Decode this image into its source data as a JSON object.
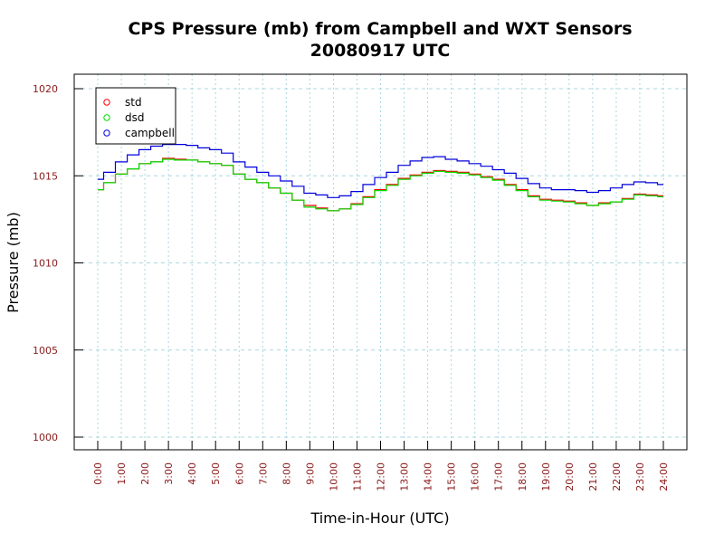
{
  "chart_data": {
    "type": "line",
    "title": "CPS Pressure (mb) from Campbell and WXT Sensors",
    "subtitle": "20080917  UTC",
    "xlabel": "Time-in-Hour (UTC)",
    "ylabel": "Pressure (mb)",
    "xlim": [
      0,
      24
    ],
    "ylim": [
      1000,
      1020
    ],
    "x_ticks": [
      0,
      1,
      2,
      3,
      4,
      5,
      6,
      7,
      8,
      9,
      10,
      11,
      12,
      13,
      14,
      15,
      16,
      17,
      18,
      19,
      20,
      21,
      22,
      23,
      24
    ],
    "x_tick_labels": [
      "0:00",
      "1:00",
      "2:00",
      "3:00",
      "4:00",
      "5:00",
      "6:00",
      "7:00",
      "8:00",
      "9:00",
      "10:00",
      "11:00",
      "12:00",
      "13:00",
      "14:00",
      "15:00",
      "16:00",
      "17:00",
      "18:00",
      "19:00",
      "20:00",
      "21:00",
      "22:00",
      "23:00",
      "24:00"
    ],
    "y_ticks": [
      1000,
      1005,
      1010,
      1015,
      1020
    ],
    "y_tick_labels": [
      "1000",
      "1005",
      "1010",
      "1015",
      "1020"
    ],
    "grid": true,
    "legend_position": "top-left",
    "x": [
      0,
      0.5,
      1,
      1.5,
      2,
      2.5,
      3,
      3.5,
      4,
      4.5,
      5,
      5.5,
      6,
      6.5,
      7,
      7.5,
      8,
      8.5,
      9,
      9.5,
      10,
      10.5,
      11,
      11.5,
      12,
      12.5,
      13,
      13.5,
      14,
      14.5,
      15,
      15.5,
      16,
      16.5,
      17,
      17.5,
      18,
      18.5,
      19,
      19.5,
      20,
      20.5,
      21,
      21.5,
      22,
      22.5,
      23,
      23.5,
      24
    ],
    "series": [
      {
        "name": "std",
        "color": "#ff0000",
        "values": [
          1014.2,
          1014.6,
          1015.1,
          1015.4,
          1015.7,
          1015.8,
          1016.0,
          1015.95,
          1015.9,
          1015.8,
          1015.7,
          1015.6,
          1015.1,
          1014.8,
          1014.6,
          1014.3,
          1014.0,
          1013.6,
          1013.3,
          1013.15,
          1013.0,
          1013.1,
          1013.4,
          1013.8,
          1014.2,
          1014.5,
          1014.85,
          1015.05,
          1015.2,
          1015.3,
          1015.25,
          1015.2,
          1015.1,
          1014.95,
          1014.8,
          1014.5,
          1014.2,
          1013.85,
          1013.65,
          1013.6,
          1013.55,
          1013.45,
          1013.3,
          1013.45,
          1013.5,
          1013.7,
          1013.95,
          1013.9,
          1013.85
        ]
      },
      {
        "name": "dsd",
        "color": "#00dd00",
        "values": [
          1014.2,
          1014.6,
          1015.1,
          1015.4,
          1015.7,
          1015.8,
          1015.95,
          1015.9,
          1015.9,
          1015.8,
          1015.7,
          1015.6,
          1015.1,
          1014.8,
          1014.6,
          1014.3,
          1014.0,
          1013.6,
          1013.2,
          1013.1,
          1013.0,
          1013.1,
          1013.35,
          1013.75,
          1014.15,
          1014.45,
          1014.8,
          1015.0,
          1015.15,
          1015.25,
          1015.2,
          1015.15,
          1015.05,
          1014.9,
          1014.75,
          1014.45,
          1014.15,
          1013.8,
          1013.6,
          1013.55,
          1013.5,
          1013.4,
          1013.3,
          1013.4,
          1013.5,
          1013.65,
          1013.9,
          1013.85,
          1013.8
        ]
      },
      {
        "name": "campbell",
        "color": "#0000dd",
        "values": [
          1014.8,
          1015.2,
          1015.8,
          1016.2,
          1016.5,
          1016.7,
          1016.8,
          1016.8,
          1016.75,
          1016.6,
          1016.5,
          1016.3,
          1015.8,
          1015.5,
          1015.2,
          1015.0,
          1014.7,
          1014.4,
          1014.0,
          1013.9,
          1013.75,
          1013.85,
          1014.1,
          1014.5,
          1014.9,
          1015.2,
          1015.6,
          1015.85,
          1016.05,
          1016.1,
          1015.95,
          1015.85,
          1015.7,
          1015.55,
          1015.35,
          1015.15,
          1014.85,
          1014.55,
          1014.3,
          1014.2,
          1014.2,
          1014.15,
          1014.05,
          1014.15,
          1014.3,
          1014.5,
          1014.65,
          1014.6,
          1014.5
        ]
      }
    ]
  }
}
